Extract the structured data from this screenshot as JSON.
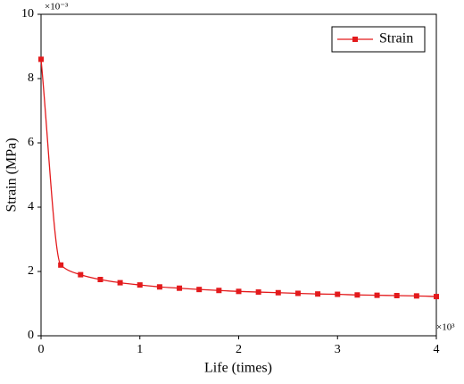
{
  "chart_data": {
    "type": "line",
    "x_label": "Life (times)",
    "y_label": "Strain (MPa)",
    "x_multiplier": "×10³",
    "y_multiplier": "×10⁻³",
    "x": [
      0,
      0.2,
      0.4,
      0.6,
      0.8,
      1.0,
      1.2,
      1.4,
      1.6,
      1.8,
      2.0,
      2.2,
      2.4,
      2.6,
      2.8,
      3.0,
      3.2,
      3.4,
      3.6,
      3.8,
      4.0
    ],
    "series": [
      {
        "name": "Strain",
        "color": "#e31a1c",
        "values": [
          8.6,
          2.2,
          1.9,
          1.75,
          1.65,
          1.58,
          1.52,
          1.48,
          1.44,
          1.41,
          1.38,
          1.36,
          1.34,
          1.32,
          1.3,
          1.29,
          1.27,
          1.26,
          1.25,
          1.24,
          1.22
        ]
      }
    ],
    "xlim": [
      0,
      4
    ],
    "xticks": [
      0,
      1,
      2,
      3,
      4
    ],
    "ylim": [
      0,
      10
    ],
    "yticks": [
      0,
      2,
      4,
      6,
      8,
      10
    ],
    "legend": "top-right",
    "grid": false
  }
}
